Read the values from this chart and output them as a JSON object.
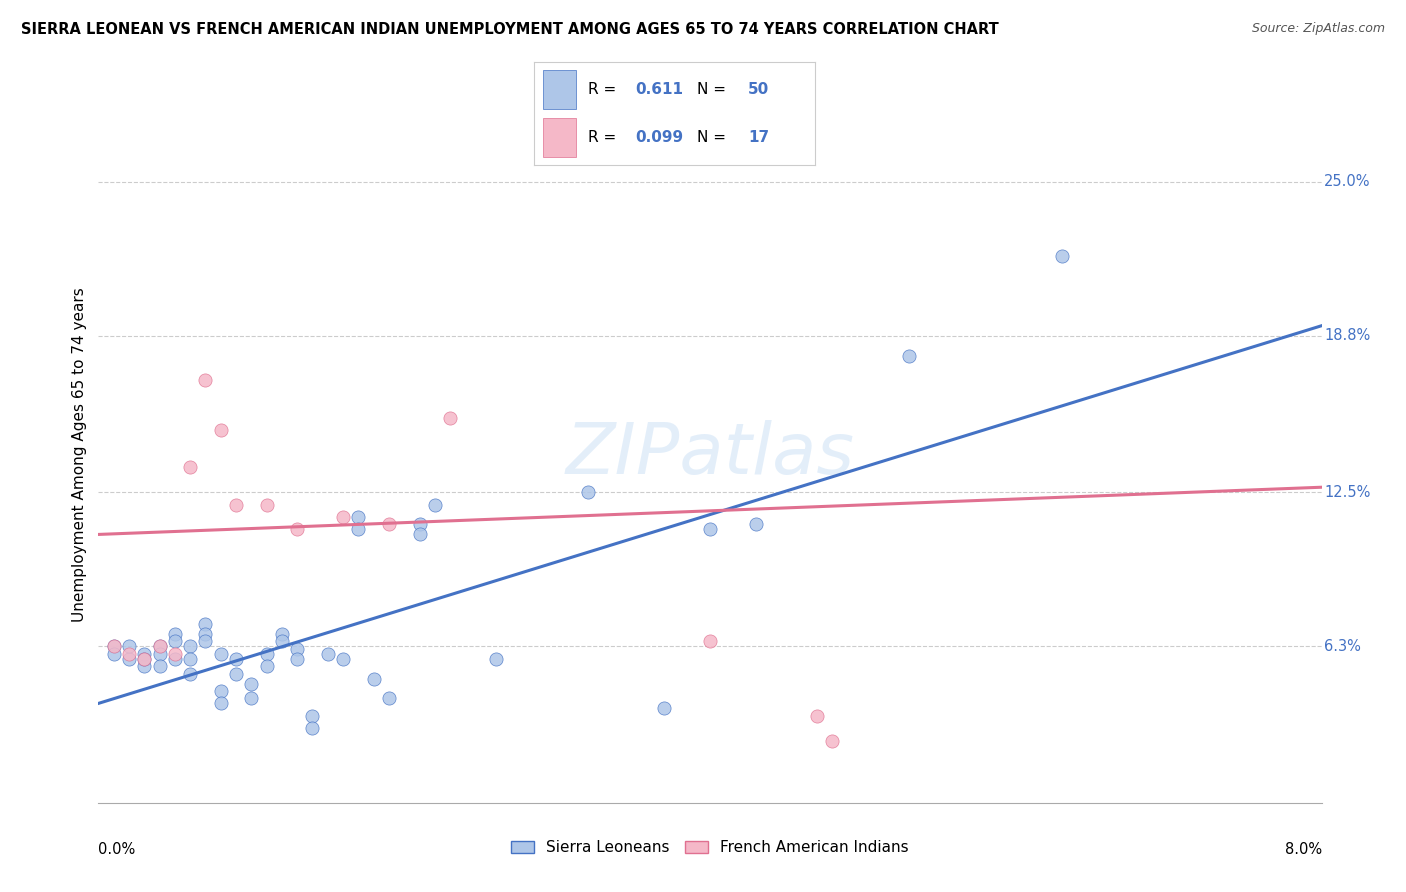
{
  "title": "SIERRA LEONEAN VS FRENCH AMERICAN INDIAN UNEMPLOYMENT AMONG AGES 65 TO 74 YEARS CORRELATION CHART",
  "source": "Source: ZipAtlas.com",
  "ylabel": "Unemployment Among Ages 65 to 74 years",
  "xlim": [
    0.0,
    0.08
  ],
  "ylim": [
    0.0,
    0.28
  ],
  "y_tick_labels": [
    "6.3%",
    "12.5%",
    "18.8%",
    "25.0%"
  ],
  "y_tick_values": [
    0.063,
    0.125,
    0.188,
    0.25
  ],
  "watermark": "ZIPatlas",
  "blue_R": "0.611",
  "blue_N": "50",
  "pink_R": "0.099",
  "pink_N": "17",
  "blue_color": "#aec6e8",
  "pink_color": "#f5b8c8",
  "blue_line_color": "#4472c4",
  "pink_line_color": "#e07090",
  "scatter_blue": [
    [
      0.001,
      0.063
    ],
    [
      0.001,
      0.06
    ],
    [
      0.002,
      0.058
    ],
    [
      0.002,
      0.063
    ],
    [
      0.003,
      0.055
    ],
    [
      0.003,
      0.06
    ],
    [
      0.003,
      0.058
    ],
    [
      0.004,
      0.063
    ],
    [
      0.004,
      0.06
    ],
    [
      0.004,
      0.055
    ],
    [
      0.005,
      0.068
    ],
    [
      0.005,
      0.065
    ],
    [
      0.005,
      0.058
    ],
    [
      0.006,
      0.063
    ],
    [
      0.006,
      0.058
    ],
    [
      0.006,
      0.052
    ],
    [
      0.007,
      0.072
    ],
    [
      0.007,
      0.068
    ],
    [
      0.007,
      0.065
    ],
    [
      0.008,
      0.06
    ],
    [
      0.008,
      0.045
    ],
    [
      0.008,
      0.04
    ],
    [
      0.009,
      0.058
    ],
    [
      0.009,
      0.052
    ],
    [
      0.01,
      0.048
    ],
    [
      0.01,
      0.042
    ],
    [
      0.011,
      0.06
    ],
    [
      0.011,
      0.055
    ],
    [
      0.012,
      0.068
    ],
    [
      0.012,
      0.065
    ],
    [
      0.013,
      0.062
    ],
    [
      0.013,
      0.058
    ],
    [
      0.014,
      0.035
    ],
    [
      0.014,
      0.03
    ],
    [
      0.015,
      0.06
    ],
    [
      0.016,
      0.058
    ],
    [
      0.017,
      0.115
    ],
    [
      0.017,
      0.11
    ],
    [
      0.018,
      0.05
    ],
    [
      0.019,
      0.042
    ],
    [
      0.021,
      0.112
    ],
    [
      0.021,
      0.108
    ],
    [
      0.022,
      0.12
    ],
    [
      0.026,
      0.058
    ],
    [
      0.032,
      0.125
    ],
    [
      0.037,
      0.038
    ],
    [
      0.04,
      0.11
    ],
    [
      0.043,
      0.112
    ],
    [
      0.053,
      0.18
    ],
    [
      0.063,
      0.22
    ]
  ],
  "scatter_pink": [
    [
      0.001,
      0.063
    ],
    [
      0.002,
      0.06
    ],
    [
      0.003,
      0.058
    ],
    [
      0.004,
      0.063
    ],
    [
      0.005,
      0.06
    ],
    [
      0.006,
      0.135
    ],
    [
      0.007,
      0.17
    ],
    [
      0.008,
      0.15
    ],
    [
      0.009,
      0.12
    ],
    [
      0.011,
      0.12
    ],
    [
      0.013,
      0.11
    ],
    [
      0.016,
      0.115
    ],
    [
      0.019,
      0.112
    ],
    [
      0.023,
      0.155
    ],
    [
      0.04,
      0.065
    ],
    [
      0.047,
      0.035
    ],
    [
      0.048,
      0.025
    ]
  ],
  "blue_trend_x": [
    0.0,
    0.08
  ],
  "blue_trend_y": [
    0.04,
    0.192
  ],
  "pink_trend_x": [
    0.0,
    0.08
  ],
  "pink_trend_y": [
    0.108,
    0.127
  ]
}
